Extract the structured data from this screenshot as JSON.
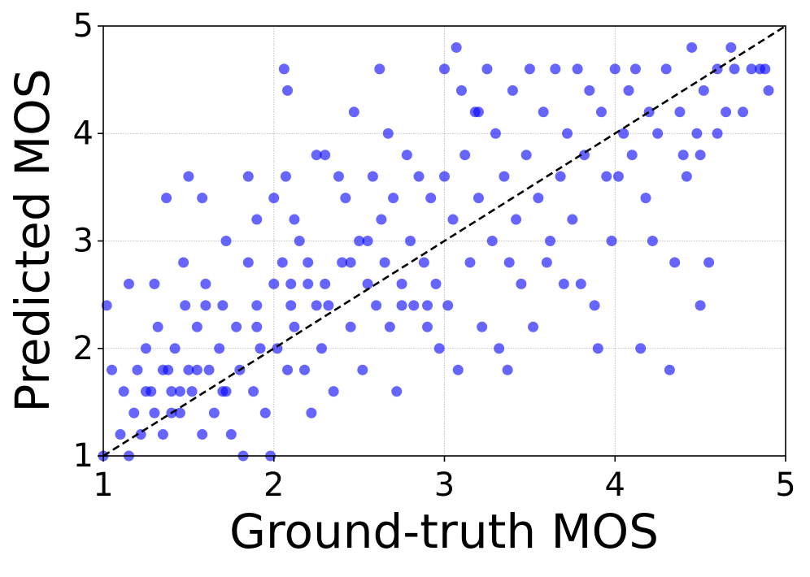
{
  "chart_data": {
    "type": "scatter",
    "x_label": "Ground-truth MOS",
    "y_label": "Predicted MOS",
    "xlim": [
      1,
      5
    ],
    "ylim": [
      1,
      5
    ],
    "xticks": [
      1,
      2,
      3,
      4,
      5
    ],
    "yticks": [
      1,
      2,
      3,
      4,
      5
    ],
    "grid": true,
    "identity_line": true,
    "series": [
      {
        "color": "#0000ff",
        "x": [
          1.0,
          1.05,
          1.1,
          1.12,
          1.15,
          1.18,
          1.2,
          1.22,
          1.25,
          1.28,
          1.3,
          1.32,
          1.35,
          1.38,
          1.4,
          1.42,
          1.45,
          1.48,
          1.5,
          1.52,
          1.55,
          1.58,
          1.6,
          1.62,
          1.65,
          1.68,
          1.7,
          1.72,
          1.75,
          1.78,
          1.8,
          1.82,
          1.85,
          1.88,
          1.9,
          1.92,
          1.95,
          1.98,
          2.0,
          1.02,
          1.15,
          1.3,
          1.37,
          1.47,
          1.5,
          1.58,
          1.72,
          1.85,
          1.9,
          2.0,
          2.06,
          2.08,
          2.07,
          2.08,
          2.12,
          2.2,
          2.02,
          2.05,
          2.1,
          2.12,
          2.15,
          2.18,
          2.2,
          2.22,
          2.25,
          2.28,
          2.3,
          2.32,
          2.35,
          2.38,
          2.4,
          2.42,
          2.45,
          2.47,
          2.5,
          2.52,
          2.55,
          2.58,
          2.6,
          2.62,
          2.63,
          2.65,
          2.67,
          2.68,
          2.7,
          2.72,
          2.75,
          2.78,
          2.8,
          2.82,
          2.85,
          2.88,
          2.9,
          2.92,
          2.95,
          2.97,
          3.0,
          3.0,
          3.02,
          3.05,
          3.07,
          3.08,
          3.1,
          3.12,
          3.15,
          3.18,
          3.2,
          3.22,
          3.25,
          3.28,
          3.3,
          3.32,
          3.35,
          3.37,
          3.38,
          3.4,
          3.42,
          3.45,
          3.48,
          3.5,
          3.52,
          3.55,
          3.58,
          3.6,
          3.62,
          3.65,
          3.68,
          3.7,
          3.72,
          3.75,
          3.78,
          3.8,
          3.82,
          3.85,
          3.88,
          3.9,
          3.92,
          3.95,
          3.98,
          4.0,
          4.02,
          4.05,
          4.08,
          4.1,
          4.12,
          4.15,
          4.18,
          4.2,
          4.22,
          4.25,
          4.3,
          4.32,
          4.35,
          4.38,
          4.4,
          4.42,
          4.45,
          4.48,
          4.5,
          4.52,
          4.55,
          4.6,
          4.65,
          4.7,
          4.75,
          4.8,
          4.85,
          4.9,
          4.88,
          4.5,
          4.68,
          4.6,
          3.2,
          1.25,
          1.4,
          1.55,
          1.7,
          1.45,
          1.6,
          1.35,
          2.3,
          2.45,
          2.55,
          2.75,
          2.9,
          1.9,
          2.1,
          2.25
        ],
        "y": [
          1.0,
          1.8,
          1.2,
          1.6,
          1.0,
          1.4,
          1.8,
          1.2,
          2.0,
          1.6,
          1.4,
          2.2,
          1.2,
          1.8,
          1.6,
          2.0,
          1.4,
          2.4,
          1.8,
          1.6,
          2.2,
          1.2,
          2.6,
          1.8,
          1.4,
          2.0,
          2.4,
          1.6,
          1.2,
          2.2,
          1.8,
          1.0,
          2.8,
          1.6,
          2.4,
          2.0,
          1.4,
          1.0,
          2.6,
          2.4,
          2.6,
          2.6,
          3.4,
          2.8,
          3.6,
          3.4,
          3.0,
          3.6,
          3.2,
          3.4,
          4.6,
          4.4,
          3.6,
          1.8,
          3.2,
          2.8,
          2.0,
          2.8,
          2.4,
          2.2,
          3.0,
          1.8,
          2.6,
          1.4,
          3.8,
          2.0,
          3.8,
          2.4,
          1.6,
          3.6,
          2.8,
          3.4,
          2.2,
          4.2,
          3.0,
          1.8,
          2.6,
          3.6,
          2.4,
          4.6,
          3.2,
          2.8,
          4.0,
          2.2,
          3.4,
          1.6,
          2.6,
          3.8,
          3.0,
          2.4,
          3.6,
          2.8,
          2.2,
          3.4,
          2.6,
          2.0,
          3.6,
          4.6,
          2.4,
          3.2,
          4.8,
          1.8,
          4.4,
          3.8,
          2.8,
          4.2,
          3.4,
          2.2,
          4.6,
          3.0,
          4.0,
          2.0,
          3.6,
          1.8,
          2.8,
          4.4,
          3.2,
          2.6,
          3.8,
          4.6,
          2.2,
          3.4,
          4.2,
          2.8,
          3.0,
          4.6,
          3.6,
          2.6,
          4.0,
          3.2,
          4.6,
          2.6,
          3.8,
          4.4,
          2.4,
          2.0,
          4.2,
          3.6,
          3.0,
          4.6,
          3.6,
          4.0,
          4.4,
          3.8,
          4.6,
          2.0,
          3.4,
          4.2,
          3.0,
          4.0,
          4.6,
          1.8,
          2.8,
          4.2,
          3.8,
          3.6,
          4.8,
          4.0,
          2.4,
          4.4,
          2.8,
          4.6,
          4.2,
          4.6,
          4.2,
          4.6,
          4.6,
          4.4,
          4.6,
          3.8,
          4.8,
          4.0,
          4.2,
          1.6,
          1.4,
          1.8,
          1.6,
          1.6,
          2.4,
          1.8,
          2.6,
          2.8,
          3.0,
          2.4,
          2.4,
          2.2,
          2.6,
          2.4
        ]
      }
    ]
  }
}
